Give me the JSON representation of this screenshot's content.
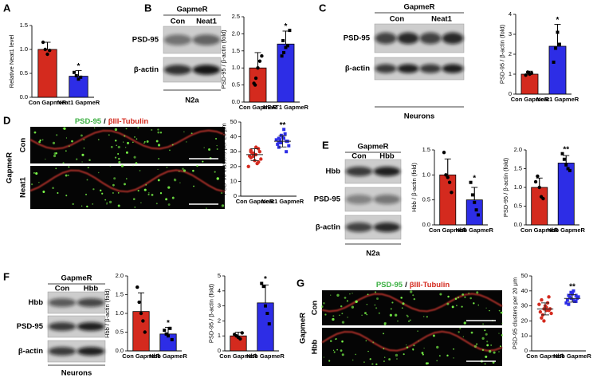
{
  "panel_labels": [
    "A",
    "B",
    "C",
    "D",
    "E",
    "F",
    "G"
  ],
  "blots": [
    {
      "header": "GapmeR",
      "lanes": [
        "Con",
        "Neat1"
      ],
      "rows": [
        "PSD-95",
        "β-actin"
      ],
      "footer": "N2a"
    },
    {
      "header": "GapmeR",
      "lanes": [
        "Con",
        "Neat1"
      ],
      "rows": [
        "PSD-95",
        "β-actin"
      ],
      "footer": "Neurons"
    },
    {
      "header": "GapmeR",
      "lanes": [
        "Con",
        "Hbb"
      ],
      "rows": [
        "Hbb",
        "PSD-95",
        "β-actin"
      ],
      "footer": "N2a"
    },
    {
      "header": "GapmeR",
      "lanes": [
        "Con",
        "Hbb"
      ],
      "rows": [
        "Hbb",
        "PSD-95",
        "β-actin"
      ],
      "footer": "Neurons"
    }
  ],
  "micrographs": [
    {
      "marker": "PSD-95",
      "separator": "/",
      "counterstain": "βIII-Tubulin",
      "side": "GapmeR",
      "rows": [
        "Con",
        "Neat1"
      ]
    },
    {
      "marker": "PSD-95",
      "separator": "/",
      "counterstain": "βIII-Tubulin",
      "side": "GapmeR",
      "rows": [
        "Con",
        "Hbb"
      ]
    }
  ],
  "chart_data": [
    {
      "type": "bar",
      "ylabel": "Relative Neat1 level",
      "categories": [
        "Con GapmeR",
        "Neat1 GapmeR"
      ],
      "values": [
        1.0,
        0.44
      ],
      "errors": [
        0.15,
        0.12
      ],
      "points": [
        [
          1.15,
          1.0,
          0.9,
          0.98
        ],
        [
          0.52,
          0.45,
          0.38,
          0.42
        ]
      ],
      "markers": [
        "circle",
        "square"
      ],
      "colors": [
        "#d42a1e",
        "#2d2de6"
      ],
      "annotation": "*",
      "ylim": [
        0,
        1.5
      ],
      "yticks": [
        {
          "value": 0,
          "label": "0.0"
        },
        0.5,
        {
          "value": 1,
          "label": "1.0"
        },
        1.5
      ]
    },
    {
      "type": "bar",
      "ylabel": "PSD-95 / β-actin (fold)",
      "categories": [
        "Con GapmeR",
        "NEAT1 GapmeR"
      ],
      "values": [
        1.0,
        1.7
      ],
      "errors": [
        0.45,
        0.38
      ],
      "points": [
        [
          0.55,
          0.7,
          1.0,
          1.2,
          1.35,
          0.5
        ],
        [
          1.35,
          1.45,
          1.6,
          1.65,
          2.1,
          1.8
        ]
      ],
      "markers": [
        "circle",
        "square"
      ],
      "colors": [
        "#d42a1e",
        "#2d2de6"
      ],
      "annotation": "*",
      "ylim": [
        0,
        2.5
      ],
      "yticks": [
        {
          "value": 0,
          "label": "0.0"
        },
        0.5,
        {
          "value": 1,
          "label": "1.0"
        },
        1.5,
        {
          "value": 2,
          "label": "2.0"
        },
        2.5
      ]
    },
    {
      "type": "bar",
      "ylabel": "PSD-95 / β-actin (fold)",
      "categories": [
        "Con GapmeR",
        "Neat1 GapmeR"
      ],
      "values": [
        1.0,
        2.4
      ],
      "errors": [
        0.15,
        1.1
      ],
      "points": [
        [
          0.95,
          1.1,
          1.0,
          1.05
        ],
        [
          1.6,
          2.3,
          3.1,
          2.5
        ]
      ],
      "markers": [
        "circle",
        "square"
      ],
      "colors": [
        "#d42a1e",
        "#2d2de6"
      ],
      "annotation": "*",
      "ylim": [
        0,
        4
      ],
      "yticks": [
        0,
        1,
        2,
        3,
        4
      ]
    },
    {
      "type": "scatter",
      "ylabel": "PSD-95 clusters per 20 μm",
      "categories": [
        "Con GapmeR",
        "Neat1 GapmeR"
      ],
      "values": [
        28,
        37
      ],
      "errors": [
        4,
        3.8
      ],
      "points": [
        [
          27,
          29,
          24,
          22,
          30,
          31,
          26,
          28,
          33,
          25,
          20,
          29,
          27,
          32,
          23,
          30
        ],
        [
          35,
          38,
          40,
          42,
          37,
          36,
          33,
          39,
          45,
          34,
          38,
          41,
          36,
          30,
          37,
          39
        ]
      ],
      "markers": [
        "circle",
        "square"
      ],
      "colors": [
        "#d42a1e",
        "#2d2de6"
      ],
      "annotation": "**",
      "ylim": [
        0,
        50
      ],
      "yticks": [
        0,
        10,
        20,
        30,
        40,
        50
      ]
    },
    {
      "type": "bar",
      "ylabel": "Hbb / β-actin (fold)",
      "categories": [
        "Con GapmeR",
        "Hbb GapmeR"
      ],
      "values": [
        1.0,
        0.5
      ],
      "errors": [
        0.32,
        0.25
      ],
      "points": [
        [
          1.45,
          1.0,
          0.95,
          0.85,
          0.65
        ],
        [
          0.85,
          0.6,
          0.45,
          0.3,
          0.2
        ]
      ],
      "markers": [
        "circle",
        "square"
      ],
      "colors": [
        "#d42a1e",
        "#2d2de6"
      ],
      "annotation": "*",
      "ylim": [
        0,
        1.5
      ],
      "yticks": [
        {
          "value": 0,
          "label": "0.0"
        },
        0.5,
        {
          "value": 1,
          "label": "1.0"
        },
        1.5
      ]
    },
    {
      "type": "bar",
      "ylabel": "PSD-95 / β-actin (fold)",
      "categories": [
        "Con GapmeR",
        "Hbb GapmeR"
      ],
      "values": [
        1.0,
        1.65
      ],
      "errors": [
        0.25,
        0.2
      ],
      "points": [
        [
          1.15,
          1.3,
          1.0,
          0.75,
          0.7
        ],
        [
          1.9,
          1.75,
          1.6,
          1.5,
          1.45
        ]
      ],
      "markers": [
        "circle",
        "square"
      ],
      "colors": [
        "#d42a1e",
        "#2d2de6"
      ],
      "annotation": "**",
      "ylim": [
        0,
        2
      ],
      "yticks": [
        {
          "value": 0,
          "label": "0.0"
        },
        0.5,
        {
          "value": 1,
          "label": "1.0"
        },
        1.5,
        {
          "value": 2,
          "label": "2.0"
        }
      ]
    },
    {
      "type": "bar",
      "ylabel": "Hbb / β-actin (fold)",
      "categories": [
        "Con GapmeR",
        "Hbb GapmeR"
      ],
      "values": [
        1.05,
        0.45
      ],
      "errors": [
        0.5,
        0.18
      ],
      "points": [
        [
          1.7,
          1.3,
          1.0,
          0.8,
          0.5
        ],
        [
          0.55,
          0.45,
          0.4,
          0.6,
          0.3
        ]
      ],
      "markers": [
        "circle",
        "square"
      ],
      "colors": [
        "#d42a1e",
        "#2d2de6"
      ],
      "annotation": "*",
      "ylim": [
        0,
        2
      ],
      "yticks": [
        {
          "value": 0,
          "label": "0.0"
        },
        0.5,
        {
          "value": 1,
          "label": "1.0"
        },
        1.5,
        {
          "value": 2,
          "label": "2.0"
        }
      ]
    },
    {
      "type": "bar",
      "ylabel": "PSD-95 / β-actin (fold)",
      "categories": [
        "Con GapmeR",
        "Hbb GapmeR"
      ],
      "values": [
        1.0,
        3.2
      ],
      "errors": [
        0.25,
        1.2
      ],
      "points": [
        [
          1.1,
          1.0,
          0.9,
          0.8,
          1.2
        ],
        [
          4.5,
          4.3,
          3.0,
          2.5,
          1.8
        ]
      ],
      "markers": [
        "circle",
        "square"
      ],
      "colors": [
        "#d42a1e",
        "#2d2de6"
      ],
      "annotation": "*",
      "ylim": [
        0,
        5
      ],
      "yticks": [
        0,
        1,
        2,
        3,
        4,
        5
      ]
    },
    {
      "type": "scatter",
      "ylabel": "PSD-95 clusters per 20 μm",
      "categories": [
        "Con GapmeR",
        "Hbb GapmeR"
      ],
      "values": [
        28,
        35
      ],
      "errors": [
        4,
        2.5
      ],
      "points": [
        [
          26,
          24,
          30,
          32,
          28,
          22,
          34,
          27,
          29,
          25,
          31,
          20,
          28,
          36,
          27
        ],
        [
          34,
          36,
          38,
          33,
          35,
          31,
          37,
          40,
          34,
          36,
          32,
          39,
          35,
          33,
          37
        ]
      ],
      "markers": [
        "circle",
        "square"
      ],
      "colors": [
        "#d42a1e",
        "#2d2de6"
      ],
      "annotation": "**",
      "ylim": [
        0,
        50
      ],
      "yticks": [
        0,
        10,
        20,
        30,
        40,
        50
      ]
    }
  ]
}
